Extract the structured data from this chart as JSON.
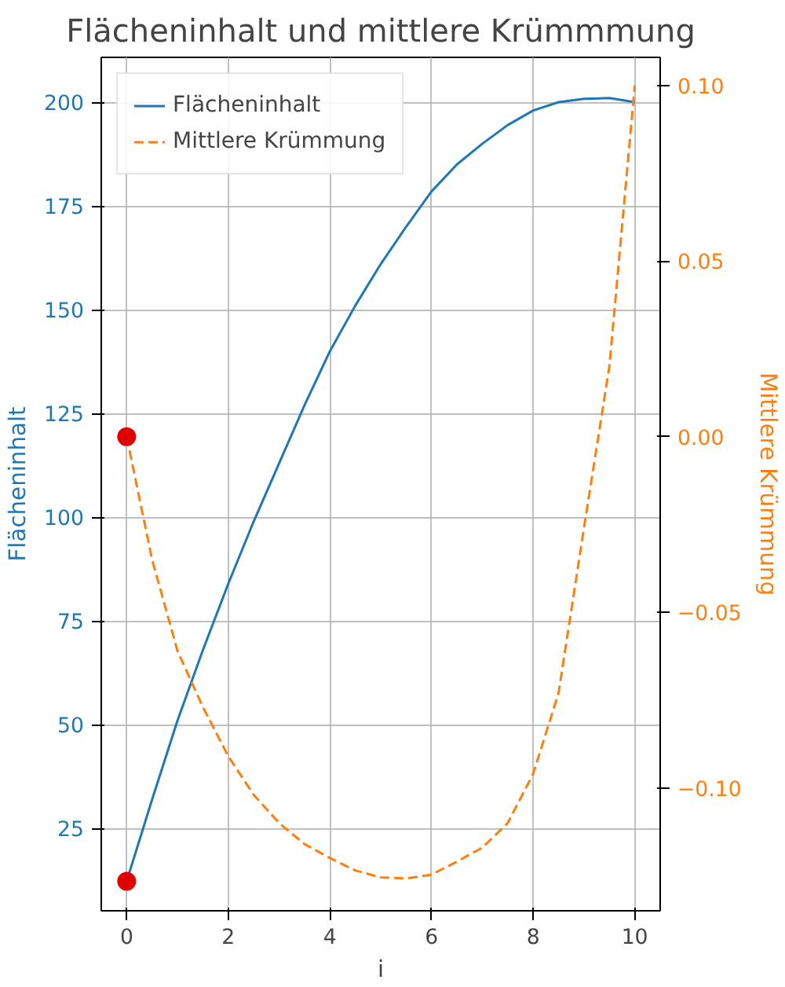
{
  "chart_data": {
    "type": "line",
    "title": "Flächeninhalt und mittlere Krümmmung",
    "xlabel": "i",
    "ylabel": "Flächeninhalt",
    "y2label": "Mittlere Krümmung",
    "x": [
      0,
      0.5,
      1,
      1.5,
      2,
      2.5,
      3,
      3.5,
      4,
      4.5,
      5,
      5.5,
      6,
      6.5,
      7,
      7.5,
      8,
      8.5,
      9,
      9.5,
      10
    ],
    "series": [
      {
        "name": "Flächeninhalt",
        "color": "#1f77b4",
        "line_style": "solid",
        "values": [
          12.3,
          32,
          51,
          68,
          84,
          99,
          113,
          127,
          140,
          151,
          161,
          170,
          178.5,
          185,
          190,
          194.5,
          198,
          200,
          200.8,
          201,
          200
        ]
      },
      {
        "name": "Mittlere Krümmung",
        "color": "#ff7f0e",
        "line_style": "dashed",
        "axis": "y2",
        "values": [
          0,
          -0.035,
          -0.061,
          -0.077,
          -0.091,
          -0.102,
          -0.11,
          -0.116,
          -0.12,
          -0.1235,
          -0.1255,
          -0.1258,
          -0.1247,
          -0.121,
          -0.117,
          -0.11,
          -0.096,
          -0.073,
          -0.026,
          0.02,
          0.1
        ]
      },
      {
        "type": "scatter",
        "color": "#e00000",
        "marker": "circle",
        "x": [
          0
        ],
        "values": [
          12.3
        ]
      },
      {
        "type": "scatter",
        "color": "#e00000",
        "marker": "circle",
        "axis": "y2",
        "x": [
          0
        ],
        "values": [
          0
        ]
      }
    ],
    "xlim": [
      -0.5,
      10.5
    ],
    "xticks": [
      0,
      2,
      4,
      6,
      8,
      10
    ],
    "ylim": [
      5.2,
      210.8
    ],
    "yticks": [
      25,
      50,
      75,
      100,
      125,
      150,
      175,
      200
    ],
    "y2lim": [
      -0.135,
      0.108
    ],
    "y2ticks": [
      {
        "value": -0.1,
        "label": "−0.10"
      },
      {
        "value": -0.05,
        "label": "−0.05"
      },
      {
        "value": 0,
        "label": "0.00"
      },
      {
        "value": 0.05,
        "label": "0.05"
      },
      {
        "value": 0.1,
        "label": "0.10"
      }
    ],
    "grid": true,
    "legend": "top left"
  }
}
